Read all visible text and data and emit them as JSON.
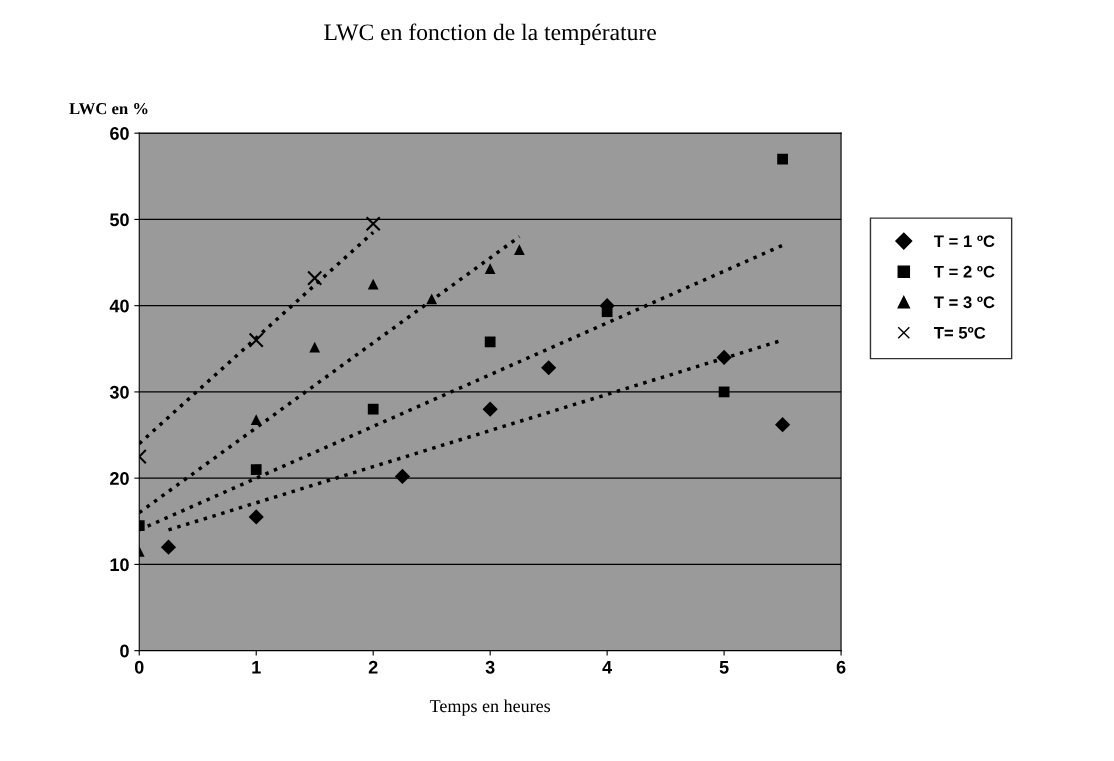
{
  "chart_data": {
    "type": "scatter",
    "title": "LWC en fonction de la température",
    "xlabel": "Temps en heures",
    "ylabel": "LWC en %",
    "xlim": [
      0,
      6
    ],
    "xticks": [
      0,
      1,
      2,
      3,
      4,
      5,
      6
    ],
    "ylim": [
      0,
      60
    ],
    "yticks": [
      0,
      10,
      20,
      30,
      40,
      50,
      60
    ],
    "grid": "y",
    "legend": "right",
    "series": [
      {
        "name": "T = 1 ºC",
        "color": "#000000",
        "marker": "diamond",
        "x": [
          0.25,
          1,
          2.25,
          3,
          3.5,
          4,
          5,
          5.5
        ],
        "values": [
          12,
          15.5,
          20.2,
          28,
          32.8,
          40,
          34,
          26.2
        ]
      },
      {
        "name": "T = 2 ºC",
        "color": "#000000",
        "marker": "square",
        "x": [
          0,
          1,
          2,
          3,
          4,
          5,
          5.5
        ],
        "values": [
          14.5,
          21,
          28,
          35.8,
          39.3,
          30,
          57
        ]
      },
      {
        "name": "T = 3 ºC",
        "color": "#000000",
        "marker": "triangle",
        "x": [
          0,
          1,
          1.5,
          2,
          2.5,
          3,
          3.25
        ],
        "values": [
          11.5,
          26.8,
          35.2,
          42.5,
          40.8,
          44.3,
          46.5
        ]
      },
      {
        "name": "T= 5ºC",
        "color": "#000000",
        "marker": "cross",
        "x": [
          0,
          1,
          1.5,
          2
        ],
        "values": [
          22.5,
          36,
          43.2,
          49.5
        ]
      },
      {
        "type": "line",
        "color": "#000000",
        "line_style": "dotted",
        "x": [
          0.25,
          5.5
        ],
        "values": [
          14,
          36
        ]
      },
      {
        "type": "line",
        "color": "#000000",
        "line_style": "dotted",
        "x": [
          0,
          5.5
        ],
        "values": [
          14,
          47
        ]
      },
      {
        "type": "line",
        "color": "#000000",
        "line_style": "dotted",
        "x": [
          0,
          3.25
        ],
        "values": [
          16,
          48
        ]
      },
      {
        "type": "line",
        "color": "#000000",
        "line_style": "dotted",
        "x": [
          0,
          2
        ],
        "values": [
          24,
          48.5
        ]
      }
    ]
  }
}
